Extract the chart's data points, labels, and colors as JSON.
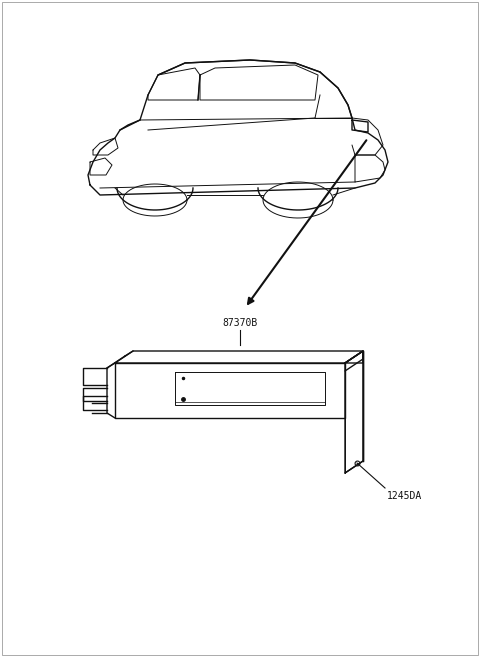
{
  "bg_color": "#ffffff",
  "line_color": "#111111",
  "label_87370B": "87370B",
  "label_1245DA": "1245DA",
  "label_fontsize": 7.0,
  "fig_width": 4.8,
  "fig_height": 6.57,
  "dpi": 100
}
